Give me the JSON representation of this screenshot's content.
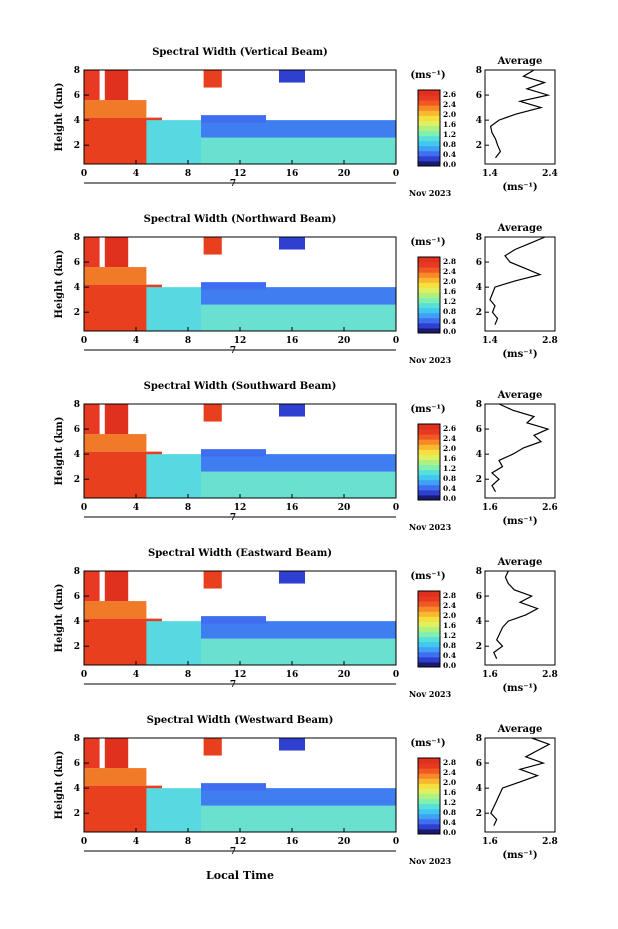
{
  "figure": {
    "x_axis_title": "Local Time"
  },
  "chart_data": [
    {
      "type": "heatmap",
      "title": "Spectral Width (Vertical Beam)",
      "ylabel": "Height (km)",
      "x_ticks": [
        "0",
        "4",
        "8",
        "12",
        "16",
        "20",
        "0"
      ],
      "x_sub": "7",
      "date_label": "Nov 2023",
      "y_ticks": [
        "2",
        "4",
        "6",
        "8"
      ],
      "colorbar": {
        "unit": "(ms⁻¹)",
        "ticks": [
          "2.6",
          "2.4",
          "2.2",
          "2.0",
          "1.8",
          "1.6",
          "1.4",
          "1.2",
          "1.0",
          "0.8",
          "0.6",
          "0.4",
          "0.2",
          "0.0"
        ],
        "shown": [
          "2.6",
          "2.4",
          "2.0",
          "1.6",
          "1.2",
          "0.8",
          "0.4",
          "0.0"
        ]
      },
      "profile": {
        "title": "Average",
        "xlabel": "(ms⁻¹)",
        "xlim": [
          1.4,
          2.4
        ],
        "x_ticks": [
          "1.4",
          "2.4"
        ],
        "y_ticks": [
          "2",
          "4",
          "6",
          "8"
        ],
        "heights": [
          1.0,
          1.5,
          2.0,
          2.5,
          3.0,
          3.5,
          4.0,
          4.5,
          5.0,
          5.5,
          6.0,
          6.5,
          7.0,
          7.5,
          8.0
        ],
        "values": [
          1.55,
          1.62,
          1.58,
          1.55,
          1.5,
          1.48,
          1.6,
          1.85,
          2.2,
          1.9,
          2.3,
          2.0,
          2.25,
          1.95,
          2.1
        ]
      }
    },
    {
      "type": "heatmap",
      "title": "Spectral Width (Northward Beam)",
      "ylabel": "Height (km)",
      "x_ticks": [
        "0",
        "4",
        "8",
        "12",
        "16",
        "20",
        "0"
      ],
      "x_sub": "7",
      "date_label": "Nov 2023",
      "y_ticks": [
        "2",
        "4",
        "6",
        "8"
      ],
      "colorbar": {
        "unit": "(ms⁻¹)",
        "ticks": [
          "2.8",
          "2.6",
          "2.4",
          "2.2",
          "2.0",
          "1.8",
          "1.6",
          "1.4",
          "1.2",
          "1.0",
          "0.8",
          "0.6",
          "0.4",
          "0.2",
          "0.0"
        ],
        "shown": [
          "2.8",
          "2.4",
          "2.0",
          "1.6",
          "1.2",
          "0.8",
          "0.4",
          "0.0"
        ]
      },
      "profile": {
        "title": "Average",
        "xlabel": "(ms⁻¹)",
        "xlim": [
          1.4,
          2.8
        ],
        "x_ticks": [
          "1.4",
          "2.8"
        ],
        "y_ticks": [
          "2",
          "4",
          "6",
          "8"
        ],
        "heights": [
          1.0,
          1.5,
          2.0,
          2.5,
          3.0,
          3.5,
          4.0,
          4.5,
          5.0,
          5.5,
          6.0,
          6.5,
          7.0,
          7.5,
          8.0
        ],
        "values": [
          1.6,
          1.65,
          1.55,
          1.6,
          1.5,
          1.55,
          1.6,
          2.0,
          2.5,
          2.2,
          1.9,
          1.8,
          2.0,
          2.3,
          2.6
        ]
      }
    },
    {
      "type": "heatmap",
      "title": "Spectral Width (Southward Beam)",
      "ylabel": "Height (km)",
      "x_ticks": [
        "0",
        "4",
        "8",
        "12",
        "16",
        "20",
        "0"
      ],
      "x_sub": "7",
      "date_label": "Nov 2023",
      "y_ticks": [
        "2",
        "4",
        "6",
        "8"
      ],
      "colorbar": {
        "unit": "(ms⁻¹)",
        "ticks": [
          "2.6",
          "2.4",
          "2.2",
          "2.0",
          "1.8",
          "1.6",
          "1.4",
          "1.2",
          "1.0",
          "0.8",
          "0.6",
          "0.4",
          "0.2",
          "0.0"
        ],
        "shown": [
          "2.6",
          "2.4",
          "2.0",
          "1.6",
          "1.2",
          "0.8",
          "0.4",
          "0.0"
        ]
      },
      "profile": {
        "title": "Average",
        "xlabel": "(ms⁻¹)",
        "xlim": [
          1.6,
          2.6
        ],
        "x_ticks": [
          "1.6",
          "2.6"
        ],
        "y_ticks": [
          "2",
          "4",
          "6",
          "8"
        ],
        "heights": [
          1.0,
          1.5,
          2.0,
          2.5,
          3.0,
          3.5,
          4.0,
          4.5,
          5.0,
          5.5,
          6.0,
          6.5,
          7.0,
          7.5,
          8.0
        ],
        "values": [
          1.75,
          1.7,
          1.8,
          1.7,
          1.85,
          1.8,
          2.0,
          2.15,
          2.4,
          2.3,
          2.5,
          2.2,
          2.3,
          2.0,
          1.8
        ]
      }
    },
    {
      "type": "heatmap",
      "title": "Spectral Width (Eastward Beam)",
      "ylabel": "Height (km)",
      "x_ticks": [
        "0",
        "4",
        "8",
        "12",
        "16",
        "20",
        "0"
      ],
      "x_sub": "7",
      "date_label": "Nov 2023",
      "y_ticks": [
        "2",
        "4",
        "6",
        "8"
      ],
      "colorbar": {
        "unit": "(ms⁻¹)",
        "ticks": [
          "2.8",
          "2.6",
          "2.4",
          "2.2",
          "2.0",
          "1.8",
          "1.6",
          "1.4",
          "1.2",
          "1.0",
          "0.8",
          "0.6",
          "0.4",
          "0.2",
          "0.0"
        ],
        "shown": [
          "2.8",
          "2.4",
          "2.0",
          "1.6",
          "1.2",
          "0.8",
          "0.4",
          "0.0"
        ]
      },
      "profile": {
        "title": "Average",
        "xlabel": "(ms⁻¹)",
        "xlim": [
          1.6,
          2.8
        ],
        "x_ticks": [
          "1.6",
          "2.8"
        ],
        "y_ticks": [
          "2",
          "4",
          "6",
          "8"
        ],
        "heights": [
          1.0,
          1.5,
          2.0,
          2.5,
          3.0,
          3.5,
          4.0,
          4.5,
          5.0,
          5.5,
          6.0,
          6.5,
          7.0,
          7.5,
          8.0
        ],
        "values": [
          1.8,
          1.75,
          1.9,
          1.8,
          1.85,
          1.9,
          2.0,
          2.3,
          2.5,
          2.2,
          2.4,
          2.1,
          2.0,
          1.95,
          2.0
        ]
      }
    },
    {
      "type": "heatmap",
      "title": "Spectral Width (Westward Beam)",
      "ylabel": "Height (km)",
      "x_ticks": [
        "0",
        "4",
        "8",
        "12",
        "16",
        "20",
        "0"
      ],
      "x_sub": "7",
      "date_label": "Nov 2023",
      "y_ticks": [
        "2",
        "4",
        "6",
        "8"
      ],
      "colorbar": {
        "unit": "(ms⁻¹)",
        "ticks": [
          "2.8",
          "2.6",
          "2.4",
          "2.2",
          "2.0",
          "1.8",
          "1.6",
          "1.4",
          "1.2",
          "1.0",
          "0.8",
          "0.6",
          "0.4",
          "0.2",
          "0.0"
        ],
        "shown": [
          "2.8",
          "2.4",
          "2.0",
          "1.6",
          "1.2",
          "0.8",
          "0.4",
          "0.0"
        ]
      },
      "profile": {
        "title": "Average",
        "xlabel": "(ms⁻¹)",
        "xlim": [
          1.6,
          2.8
        ],
        "x_ticks": [
          "1.6",
          "2.8"
        ],
        "y_ticks": [
          "2",
          "4",
          "6",
          "8"
        ],
        "heights": [
          1.0,
          1.5,
          2.0,
          2.5,
          3.0,
          3.5,
          4.0,
          4.5,
          5.0,
          5.5,
          6.0,
          6.5,
          7.0,
          7.5,
          8.0
        ],
        "values": [
          1.75,
          1.8,
          1.7,
          1.75,
          1.8,
          1.85,
          1.9,
          2.2,
          2.5,
          2.2,
          2.6,
          2.3,
          2.5,
          2.7,
          2.4
        ]
      }
    }
  ]
}
